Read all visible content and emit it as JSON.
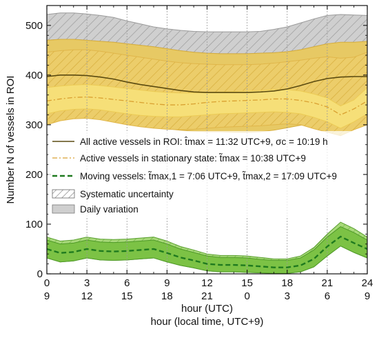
{
  "chart_data": {
    "type": "area",
    "xlabel": "hour (UTC)",
    "xlabel2": "hour (local time, UTC+9)",
    "ylabel": "Number N of vessels in ROI",
    "xlim": [
      0,
      24
    ],
    "ylim": [
      0,
      540
    ],
    "x_ticks": [
      0,
      3,
      6,
      9,
      12,
      15,
      18,
      21,
      24
    ],
    "x_tick_labels_local": [
      "9",
      "12",
      "15",
      "18",
      "21",
      "0",
      "3",
      "6",
      "9"
    ],
    "y_ticks": [
      0,
      100,
      200,
      300,
      400,
      500
    ],
    "grid": "vertical dotted lines at x ticks",
    "legend_position": "center-left",
    "x": [
      0,
      1,
      2,
      3,
      4,
      5,
      6,
      7,
      8,
      9,
      10,
      11,
      12,
      13,
      14,
      15,
      16,
      17,
      18,
      19,
      20,
      21,
      22,
      23,
      24
    ],
    "series": [
      {
        "name": "All active vessels in ROI: t̂max = 11:32 UTC+9, σc = 10:19 h",
        "style": "solid",
        "color": "#5a4a10",
        "values": [
          397,
          400,
          400,
          399,
          396,
          392,
          386,
          381,
          377,
          373,
          369,
          366,
          365,
          365,
          365,
          365,
          366,
          368,
          372,
          379,
          387,
          393,
          396,
          397,
          397
        ],
        "systematic_upper": [
          470,
          472,
          472,
          470,
          468,
          466,
          463,
          460,
          457,
          453,
          449,
          446,
          444,
          443,
          443,
          443,
          444,
          445,
          447,
          451,
          457,
          463,
          466,
          466,
          468
        ],
        "systematic_lower": [
          312,
          322,
          326,
          326,
          321,
          314,
          307,
          301,
          296,
          292,
          289,
          287,
          286,
          286,
          285,
          285,
          286,
          289,
          294,
          299,
          305,
          310,
          310,
          310,
          313
        ],
        "daily_upper": [
          522,
          525,
          525,
          523,
          520,
          516,
          509,
          503,
          497,
          493,
          490,
          488,
          487,
          487,
          487,
          487,
          488,
          492,
          497,
          505,
          513,
          520,
          522,
          521,
          520
        ],
        "daily_lower": [
          470,
          472,
          472,
          470,
          468,
          466,
          463,
          460,
          457,
          453,
          449,
          446,
          444,
          443,
          443,
          443,
          444,
          445,
          447,
          451,
          457,
          463,
          436,
          455,
          468
        ]
      },
      {
        "name": "Active vessels in stationary state: t̃max = 10:38 UTC+9",
        "style": "dash-dot",
        "color": "#d9a030",
        "values": [
          348,
          352,
          355,
          356,
          354,
          351,
          348,
          345,
          342,
          340,
          340,
          342,
          345,
          347,
          348,
          349,
          350,
          352,
          352,
          349,
          344,
          336,
          320,
          332,
          348
        ],
        "band_upper": [
          446,
          449,
          451,
          451,
          448,
          444,
          440,
          436,
          432,
          428,
          425,
          423,
          422,
          421,
          421,
          421,
          422,
          424,
          427,
          430,
          434,
          437,
          434,
          436,
          446
        ],
        "band_lower": [
          300,
          308,
          312,
          313,
          310,
          305,
          300,
          296,
          293,
          291,
          290,
          291,
          293,
          295,
          296,
          297,
          298,
          300,
          302,
          300,
          292,
          285,
          278,
          290,
          300
        ],
        "inner_upper": [
          375,
          378,
          380,
          381,
          379,
          376,
          373,
          370,
          367,
          365,
          364,
          364,
          365,
          366,
          367,
          368,
          369,
          371,
          371,
          368,
          362,
          354,
          338,
          350,
          375
        ],
        "inner_lower": [
          322,
          328,
          331,
          332,
          330,
          326,
          322,
          319,
          317,
          316,
          316,
          318,
          320,
          322,
          323,
          324,
          325,
          326,
          325,
          322,
          315,
          306,
          293,
          306,
          322
        ]
      },
      {
        "name": "Moving vessels: t̃max,1 = 7:06 UTC+9, t̃max,2 = 17:09 UTC+9",
        "style": "dashed",
        "color": "#1f7a1f",
        "values": [
          50,
          42,
          44,
          50,
          46,
          45,
          46,
          48,
          50,
          42,
          33,
          27,
          20,
          18,
          18,
          17,
          15,
          13,
          13,
          17,
          30,
          55,
          75,
          62,
          50
        ],
        "systematic_upper": [
          74,
          66,
          68,
          74,
          70,
          69,
          70,
          72,
          74,
          66,
          55,
          48,
          40,
          37,
          37,
          36,
          33,
          30,
          30,
          36,
          53,
          80,
          104,
          91,
          74
        ],
        "daily_upper": [
          68,
          60,
          62,
          68,
          64,
          63,
          64,
          66,
          68,
          60,
          50,
          43,
          36,
          33,
          33,
          32,
          29,
          27,
          27,
          32,
          48,
          74,
          95,
          83,
          68
        ],
        "daily_lower": [
          32,
          24,
          26,
          32,
          28,
          27,
          28,
          30,
          32,
          24,
          17,
          12,
          6,
          4,
          4,
          3,
          2,
          1,
          1,
          4,
          14,
          36,
          56,
          43,
          32
        ]
      }
    ],
    "legend_extra": [
      "Systematic uncertainty",
      "Daily variation"
    ]
  }
}
